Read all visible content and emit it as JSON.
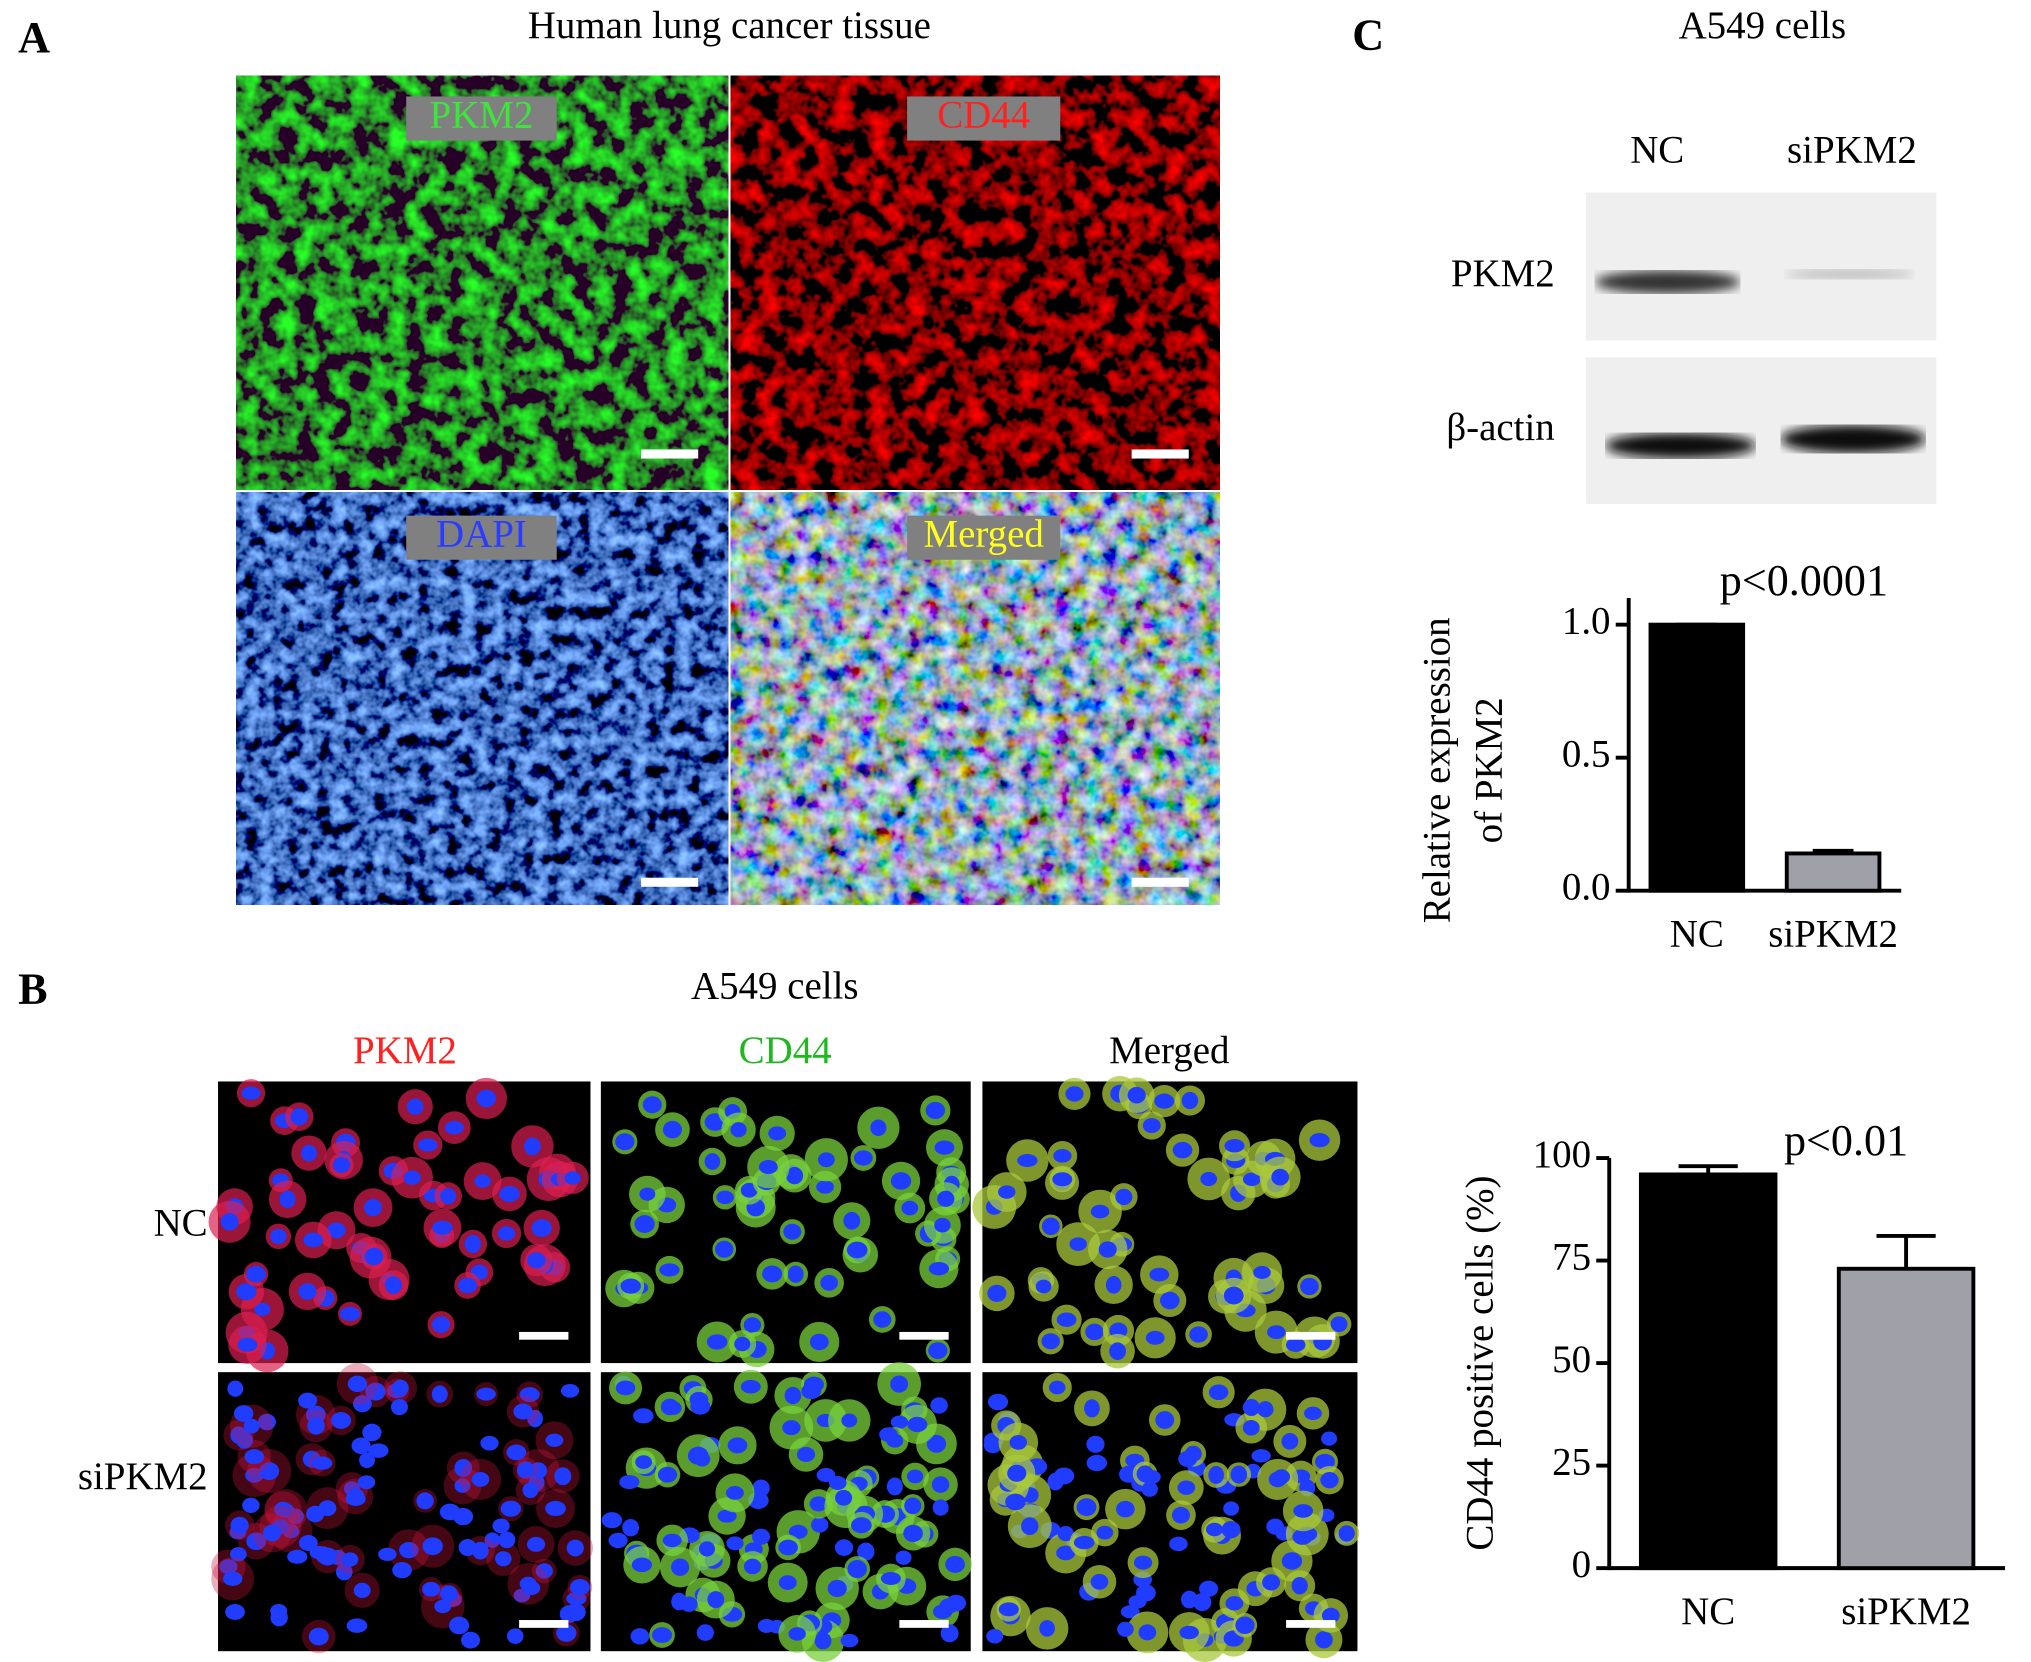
{
  "panel_a": {
    "letter": "A",
    "title": "Human lung cancer tissue",
    "labels": [
      "PKM2",
      "CD44",
      "DAPI",
      "Merged"
    ]
  },
  "panel_b": {
    "letter": "B",
    "title": "A549 cells",
    "columns": [
      "PKM2",
      "CD44",
      "Merged"
    ],
    "rows": [
      "NC",
      "siPKM2"
    ]
  },
  "panel_c": {
    "letter": "C",
    "title": "A549 cells",
    "lanes": [
      "NC",
      "siPKM2"
    ],
    "proteins": [
      "PKM2",
      "β-actin"
    ]
  },
  "chart_data": [
    {
      "type": "bar",
      "ylabel": [
        "Relative expression",
        "of PKM2"
      ],
      "annotation": "p<0.0001",
      "categories": [
        "NC",
        "siPKM2"
      ],
      "values": [
        1.0,
        0.14
      ],
      "errors": [
        0,
        0.01
      ],
      "colors": [
        "#000000",
        "#a0a0a8"
      ],
      "ylim": [
        0,
        1.1
      ],
      "yticks": [
        {
          "value": 0,
          "label": "0.0"
        },
        0.5,
        {
          "value": 1,
          "label": "1.0"
        }
      ]
    },
    {
      "type": "bar",
      "ylabel": [
        "CD44 positive cells (%)"
      ],
      "annotation": "p<0.01",
      "categories": [
        "NC",
        "siPKM2"
      ],
      "values": [
        96,
        73
      ],
      "errors": [
        2,
        8
      ],
      "colors": [
        "#000000",
        "#a0a0a8"
      ],
      "ylim": [
        0,
        100
      ],
      "yticks": [
        0,
        25,
        50,
        75,
        100
      ]
    }
  ]
}
